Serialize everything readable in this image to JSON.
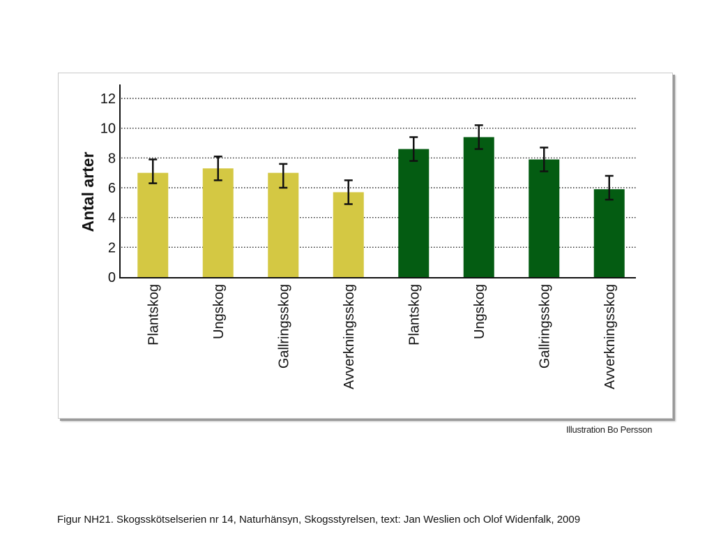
{
  "caption": "Figur  NH21. Skogsskötselserien nr 14, Naturhänsyn, Skogsstyrelsen, text: Jan Weslien och Olof Widenfalk, 2009",
  "credit": "Illustration Bo Persson",
  "colors": {
    "yellow_bar": "#d4c843",
    "green_bar": "#045c12",
    "error_bar": "#111111",
    "grid": "#222222"
  },
  "chart_data": {
    "type": "bar",
    "ylabel": "Antal arter",
    "xlabel": "",
    "ylim": [
      0,
      12
    ],
    "yticks": [
      0,
      2,
      4,
      6,
      8,
      10,
      12
    ],
    "grid": "horizontal-dotted",
    "categories": [
      "Plantskog",
      "Ungskog",
      "Gallringsskog",
      "Avverkningsskog",
      "Plantskog",
      "Ungskog",
      "Gallringsskog",
      "Avverkningsskog"
    ],
    "values": [
      7.0,
      7.3,
      7.0,
      5.7,
      8.6,
      9.4,
      7.9,
      5.9
    ],
    "error_low": [
      6.3,
      6.5,
      6.0,
      4.9,
      7.8,
      8.6,
      7.1,
      5.2
    ],
    "error_high": [
      7.9,
      8.1,
      7.6,
      6.5,
      9.4,
      10.2,
      8.7,
      6.8
    ],
    "bar_colors": [
      "#d4c843",
      "#d4c843",
      "#d4c843",
      "#d4c843",
      "#045c12",
      "#045c12",
      "#045c12",
      "#045c12"
    ]
  }
}
